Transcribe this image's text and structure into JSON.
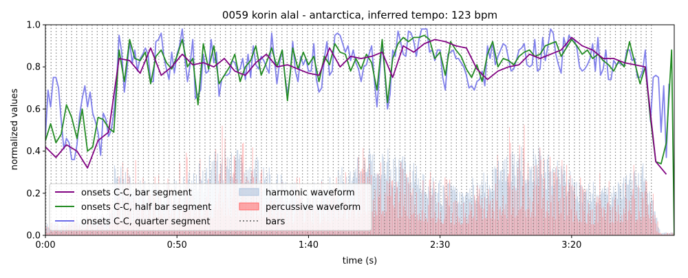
{
  "chart_data": {
    "type": "line",
    "title": "0059 korin alal - antarctica, inferred tempo: 123 bpm",
    "xlabel": "time (s)",
    "ylabel": "normalized values",
    "xlim": [
      0,
      239
    ],
    "ylim": [
      0,
      1.0
    ],
    "x_ticks": [
      {
        "value": 0,
        "label": "0:00"
      },
      {
        "value": 50,
        "label": "0:50"
      },
      {
        "value": 100,
        "label": "1:40"
      },
      {
        "value": 150,
        "label": "2:30"
      },
      {
        "value": 200,
        "label": "3:20"
      }
    ],
    "y_ticks": [
      {
        "value": 0.0,
        "label": "0.0"
      },
      {
        "value": 0.2,
        "label": "0.2"
      },
      {
        "value": 0.4,
        "label": "0.4"
      },
      {
        "value": 0.6,
        "label": "0.6"
      },
      {
        "value": 0.8,
        "label": "0.8"
      },
      {
        "value": 1.0,
        "label": "1.0"
      }
    ],
    "grid": false,
    "legend_position": "lower-left",
    "bars": {
      "name": "bars",
      "color": "#808080",
      "interval_s": 1.95,
      "start": 0.2,
      "end": 231
    },
    "series": [
      {
        "name": "onsets C-C, bar segment",
        "color": "#800080",
        "x": [
          0,
          4,
          8,
          12,
          16,
          20,
          24,
          28,
          32,
          36,
          40,
          44,
          48,
          52,
          56,
          60,
          64,
          68,
          72,
          76,
          80,
          84,
          88,
          92,
          96,
          100,
          104,
          108,
          112,
          116,
          120,
          124,
          128,
          132,
          136,
          140,
          144,
          148,
          152,
          156,
          160,
          164,
          168,
          172,
          176,
          180,
          184,
          188,
          192,
          196,
          200,
          204,
          208,
          212,
          216,
          220,
          224,
          228,
          232,
          236
        ],
        "y": [
          0.42,
          0.37,
          0.43,
          0.4,
          0.32,
          0.45,
          0.49,
          0.84,
          0.83,
          0.77,
          0.89,
          0.76,
          0.8,
          0.86,
          0.81,
          0.82,
          0.8,
          0.84,
          0.78,
          0.76,
          0.82,
          0.86,
          0.8,
          0.81,
          0.79,
          0.77,
          0.76,
          0.89,
          0.8,
          0.85,
          0.84,
          0.85,
          0.87,
          0.75,
          0.9,
          0.87,
          0.91,
          0.93,
          0.92,
          0.9,
          0.89,
          0.79,
          0.74,
          0.78,
          0.8,
          0.81,
          0.86,
          0.84,
          0.86,
          0.88,
          0.94,
          0.9,
          0.88,
          0.84,
          0.84,
          0.82,
          0.81,
          0.8,
          0.35,
          0.29
        ]
      },
      {
        "name": "onsets C-C, half bar segment",
        "color": "#228b22",
        "x": [
          0,
          2,
          4,
          6,
          8,
          10,
          12,
          14,
          16,
          18,
          20,
          22,
          24,
          26,
          28,
          30,
          32,
          34,
          36,
          38,
          40,
          42,
          44,
          46,
          48,
          50,
          52,
          54,
          56,
          58,
          60,
          62,
          64,
          66,
          68,
          70,
          72,
          74,
          76,
          78,
          80,
          82,
          84,
          86,
          88,
          90,
          92,
          94,
          96,
          98,
          100,
          102,
          104,
          106,
          108,
          110,
          112,
          114,
          116,
          118,
          120,
          122,
          124,
          126,
          128,
          130,
          132,
          134,
          136,
          138,
          140,
          142,
          144,
          146,
          148,
          150,
          152,
          154,
          156,
          158,
          160,
          162,
          164,
          166,
          168,
          170,
          172,
          174,
          176,
          178,
          180,
          182,
          184,
          186,
          188,
          190,
          192,
          194,
          196,
          198,
          200,
          202,
          204,
          206,
          208,
          210,
          212,
          214,
          216,
          218,
          220,
          222,
          224,
          226,
          228,
          230,
          232,
          234,
          236,
          238,
          239
        ],
        "y": [
          0.45,
          0.53,
          0.44,
          0.48,
          0.62,
          0.56,
          0.46,
          0.6,
          0.4,
          0.42,
          0.56,
          0.55,
          0.51,
          0.49,
          0.88,
          0.73,
          0.93,
          0.84,
          0.83,
          0.87,
          0.72,
          0.85,
          0.88,
          0.82,
          0.79,
          0.85,
          0.93,
          0.8,
          0.84,
          0.62,
          0.91,
          0.79,
          0.9,
          0.72,
          0.76,
          0.8,
          0.86,
          0.73,
          0.8,
          0.83,
          0.9,
          0.76,
          0.82,
          0.89,
          0.8,
          0.88,
          0.64,
          0.89,
          0.79,
          0.87,
          0.81,
          0.85,
          0.73,
          0.85,
          0.81,
          0.91,
          0.87,
          0.86,
          0.78,
          0.84,
          0.79,
          0.86,
          0.82,
          0.69,
          0.93,
          0.63,
          0.84,
          0.91,
          0.94,
          0.92,
          0.94,
          0.94,
          0.95,
          0.93,
          0.84,
          0.87,
          0.76,
          0.92,
          0.88,
          0.85,
          0.79,
          0.75,
          0.81,
          0.73,
          0.86,
          0.92,
          0.8,
          0.84,
          0.83,
          0.81,
          0.85,
          0.87,
          0.88,
          0.85,
          0.86,
          0.9,
          0.91,
          0.92,
          0.85,
          0.89,
          0.93,
          0.9,
          0.86,
          0.88,
          0.84,
          0.86,
          0.83,
          0.81,
          0.78,
          0.83,
          0.8,
          0.92,
          0.82,
          0.72,
          0.8,
          0.55,
          0.35,
          0.34,
          0.44,
          0.88,
          0.0
        ]
      },
      {
        "name": "onsets C-C, quarter segment",
        "color": "#6a6ae8",
        "x": [],
        "y": []
      }
    ],
    "areas": [
      {
        "name": "harmonic waveform",
        "color": "#b0c4de"
      },
      {
        "name": "percussive waveform",
        "color": "#ff6666"
      }
    ]
  },
  "legend": {
    "items": [
      {
        "label": "onsets C-C, bar segment",
        "kind": "line",
        "color": "#800080"
      },
      {
        "label": "onsets C-C, half bar segment",
        "kind": "line",
        "color": "#228b22"
      },
      {
        "label": "onsets C-C, quarter segment",
        "kind": "line",
        "color": "#6a6ae8"
      },
      {
        "label": "harmonic waveform",
        "kind": "patch",
        "color": "#b0c4de"
      },
      {
        "label": "percussive waveform",
        "kind": "patch",
        "color": "#ff6666"
      },
      {
        "label": "bars",
        "kind": "dotted",
        "color": "#808080"
      }
    ]
  }
}
